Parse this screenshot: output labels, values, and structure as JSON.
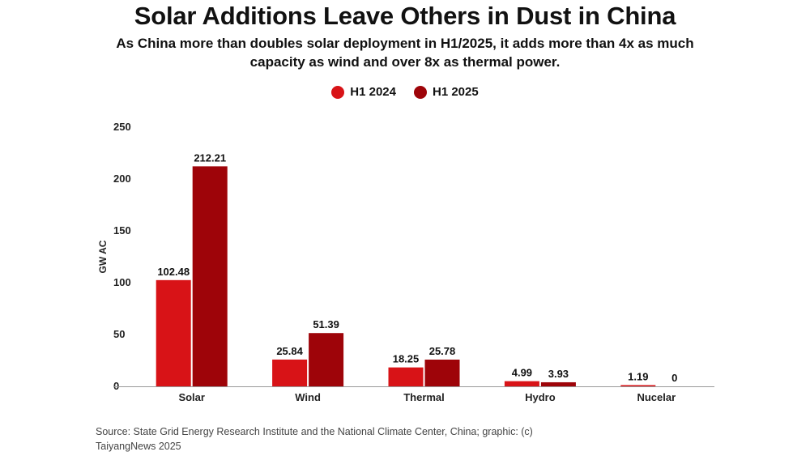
{
  "chart_data": {
    "type": "bar",
    "title": "Solar Additions Leave Others in Dust in China",
    "subtitle": "As China more than doubles solar deployment in H1/2025, it adds more than 4x as much capacity as wind and over 8x as thermal power.",
    "ylabel": "GW AC",
    "xlabel": "",
    "ylim": [
      0,
      250
    ],
    "yticks": [
      0,
      50,
      100,
      150,
      200,
      250
    ],
    "categories": [
      "Solar",
      "Wind",
      "Thermal",
      "Hydro",
      "Nucelar"
    ],
    "series": [
      {
        "name": "H1 2024",
        "color": "#d81317",
        "values": [
          102.48,
          25.84,
          18.25,
          4.99,
          1.19
        ],
        "labels": [
          "102.48",
          "25.84",
          "18.25",
          "4.99",
          "1.19"
        ]
      },
      {
        "name": "H1 2025",
        "color": "#9e0409",
        "values": [
          212.21,
          51.39,
          25.78,
          3.93,
          0
        ],
        "labels": [
          "212.21",
          "51.39",
          "25.78",
          "3.93",
          "0"
        ]
      }
    ],
    "legend": "top-center",
    "grid": false
  },
  "source": "Source: State Grid Energy Research Institute and the National Climate Center, China; graphic: (c) TaiyangNews 2025"
}
